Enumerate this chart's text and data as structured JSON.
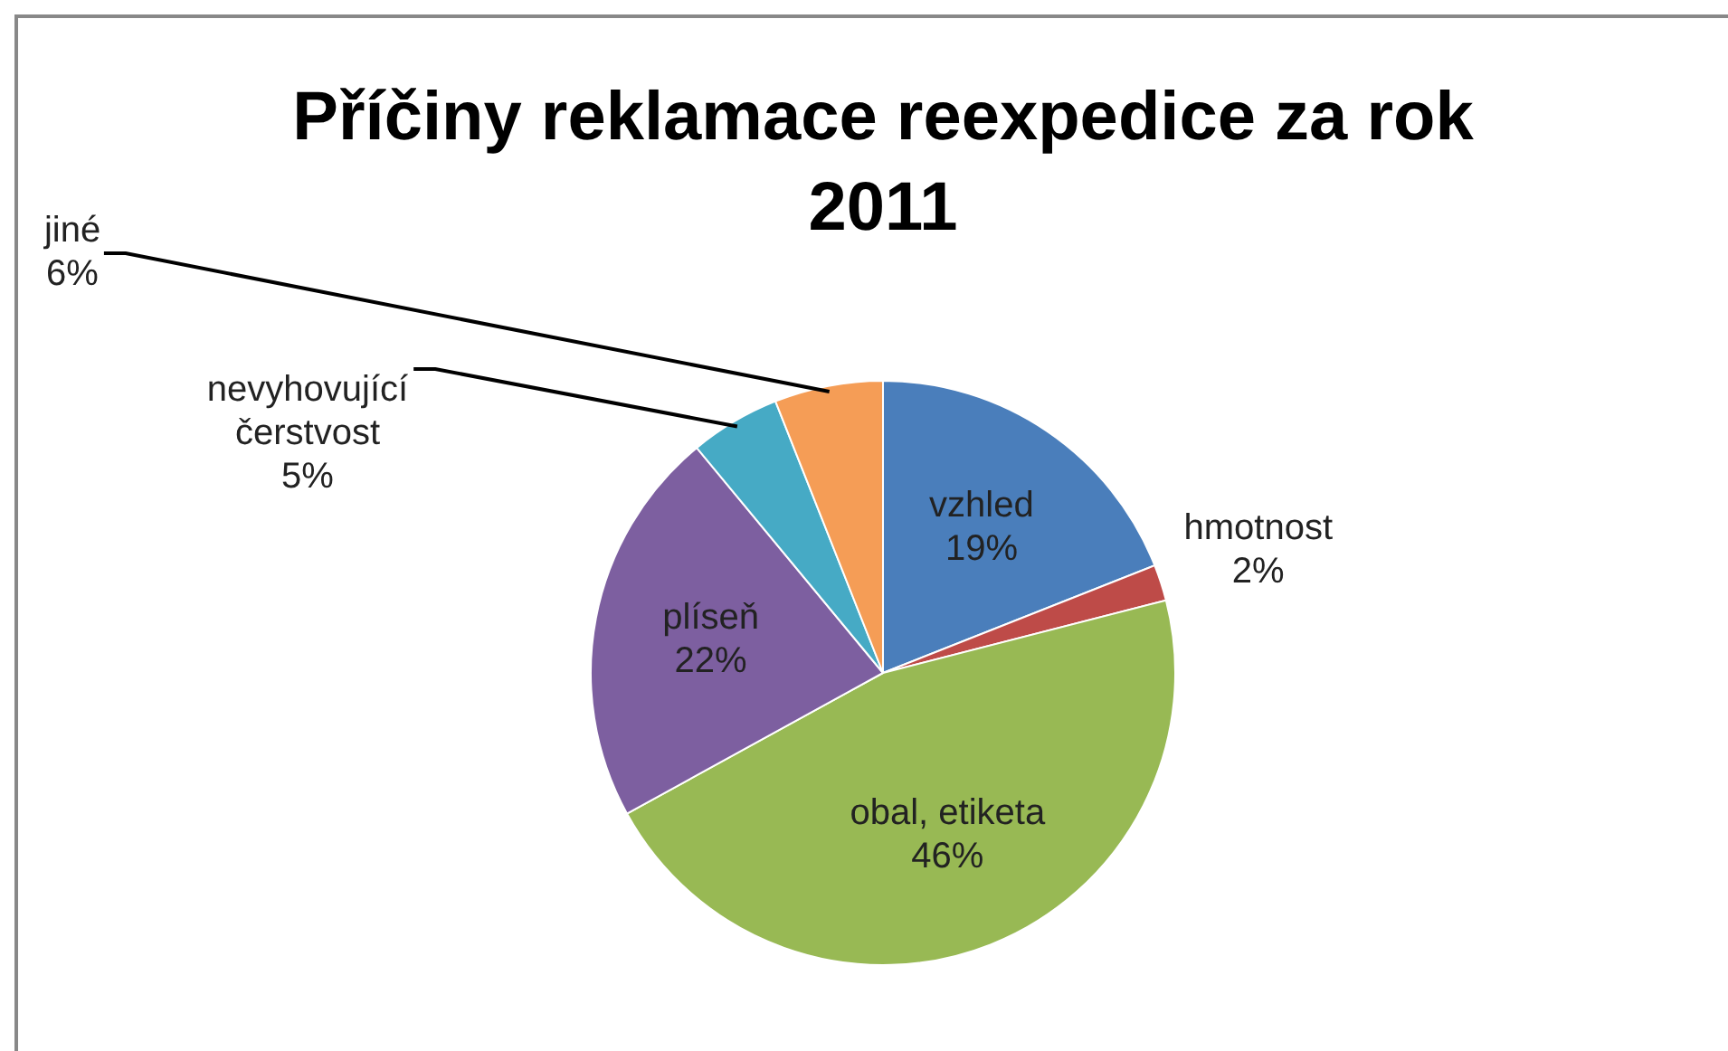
{
  "chart_data": {
    "type": "pie",
    "title": "Příčiny reklamace reexpedice za rok 2011",
    "categories": [
      "vzhled",
      "hmotnost",
      "obal, etiketa",
      "plíseň",
      "nevyhovující čerstvost",
      "jiné"
    ],
    "values": [
      19,
      2,
      46,
      22,
      5,
      6
    ],
    "value_labels": [
      "19%",
      "2%",
      "46%",
      "22%",
      "5%",
      "6%"
    ],
    "colors": [
      "#4a7ebb",
      "#be4b48",
      "#98b954",
      "#7d5fa0",
      "#46aac5",
      "#f59d56"
    ],
    "legend": false
  }
}
